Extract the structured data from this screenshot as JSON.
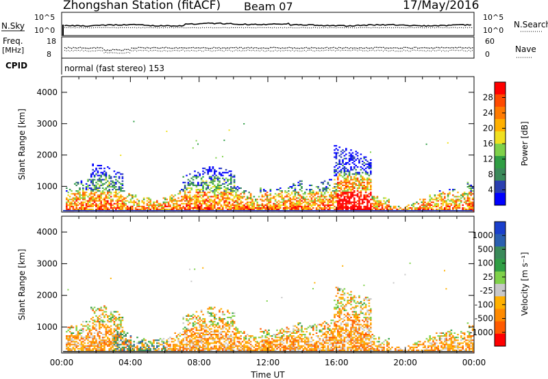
{
  "header": {
    "station": "Zhongshan Station (fitACF)",
    "beam": "Beam 07",
    "date": "17/May/2016"
  },
  "colors": {
    "power_scale": [
      "#0000ff",
      "#2a3fb0",
      "#3a8a5a",
      "#2f9e44",
      "#7fd14a",
      "#f0e020",
      "#ffb000",
      "#ff7a00",
      "#ff4a00",
      "#ff0000"
    ],
    "velocity_scale": [
      "#1a3fcc",
      "#2a5fb0",
      "#3a8a5a",
      "#2f9e44",
      "#7fd14a",
      "#c8c8c8",
      "#ffb000",
      "#ff8a00",
      "#ff5a00",
      "#ff0000"
    ]
  },
  "chart_data": [
    {
      "type": "line",
      "panel": "N.Sky / N.Search",
      "left_label": "N.Sky",
      "right_label": "N.Search",
      "left_ticks": [
        "10^5",
        "10^0"
      ],
      "right_ticks": [
        "10^5",
        "10^0"
      ]
    },
    {
      "type": "line",
      "panel": "Freq / Nave",
      "left_label": "Freq.",
      "left_unit": "[MHz]",
      "right_label": "Nave",
      "left_ticks": [
        "18",
        "8"
      ],
      "right_ticks": [
        "60",
        "0"
      ]
    },
    {
      "type": "text",
      "panel": "CPID",
      "label": "CPID",
      "text": "normal (fast stereo) 153"
    },
    {
      "type": "heatmap",
      "panel": "power",
      "ylabel": "Slant Range [km]",
      "ylim": [
        180,
        4500
      ],
      "y_ticks": [
        1000,
        2000,
        3000,
        4000
      ],
      "colorbar_label": "Power [dB]",
      "colorbar_ticks": [
        "4",
        "8",
        "12",
        "16",
        "20",
        "24",
        "28"
      ]
    },
    {
      "type": "heatmap",
      "panel": "velocity",
      "ylabel": "Slant Range [km]",
      "ylim": [
        180,
        4500
      ],
      "y_ticks": [
        1000,
        2000,
        3000,
        4000
      ],
      "xlabel": "Time UT",
      "x_ticks": [
        "00:00",
        "04:00",
        "08:00",
        "12:00",
        "16:00",
        "20:00",
        "00:00"
      ],
      "colorbar_label": "Velocity [m s⁻¹]",
      "colorbar_ticks": [
        "1000",
        "500",
        "100",
        "25",
        "-25",
        "-100",
        "-500",
        "-1000"
      ]
    }
  ]
}
